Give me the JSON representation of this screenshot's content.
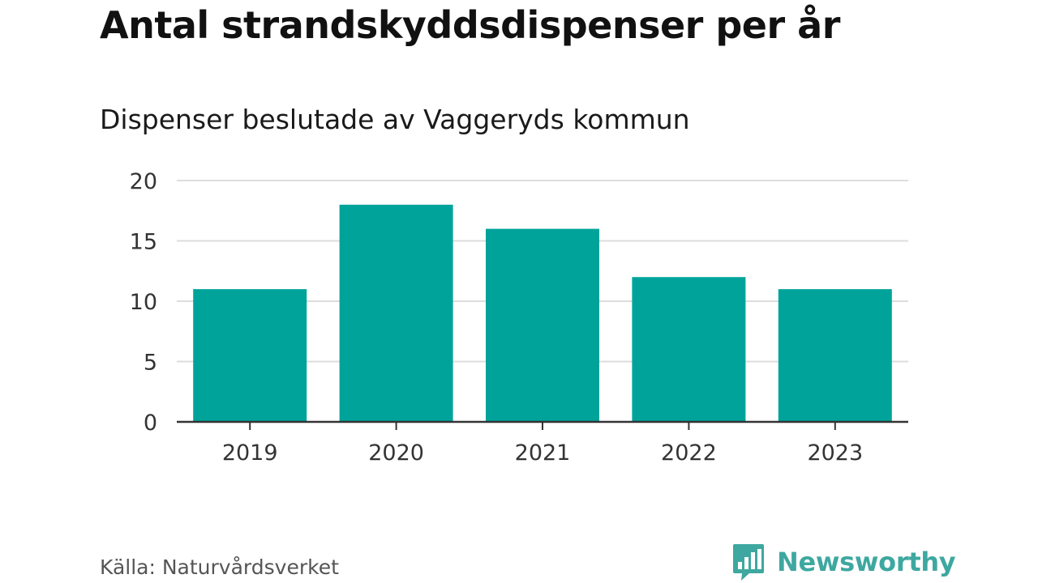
{
  "title": "Antal strandskyddsdispenser per år",
  "subtitle": "Dispenser beslutade av Vaggeryds kommun",
  "source": "Källa: Naturvårdsverket",
  "brand": {
    "name": "Newsworthy",
    "icon": "newsworthy-logo-icon",
    "color": "#3ea8a0"
  },
  "colors": {
    "bar": "#00a39a",
    "grid": "#dddddd",
    "axis": "#333333",
    "tick_text": "#333333"
  },
  "chart_data": {
    "type": "bar",
    "categories": [
      "2019",
      "2020",
      "2021",
      "2022",
      "2023"
    ],
    "values": [
      11,
      18,
      16,
      12,
      11
    ],
    "title": "Antal strandskyddsdispenser per år",
    "subtitle": "Dispenser beslutade av Vaggeryds kommun",
    "xlabel": "",
    "ylabel": "",
    "ylim": [
      0,
      20
    ],
    "yticks": [
      0,
      5,
      10,
      15,
      20
    ],
    "grid": true,
    "legend": "none"
  }
}
